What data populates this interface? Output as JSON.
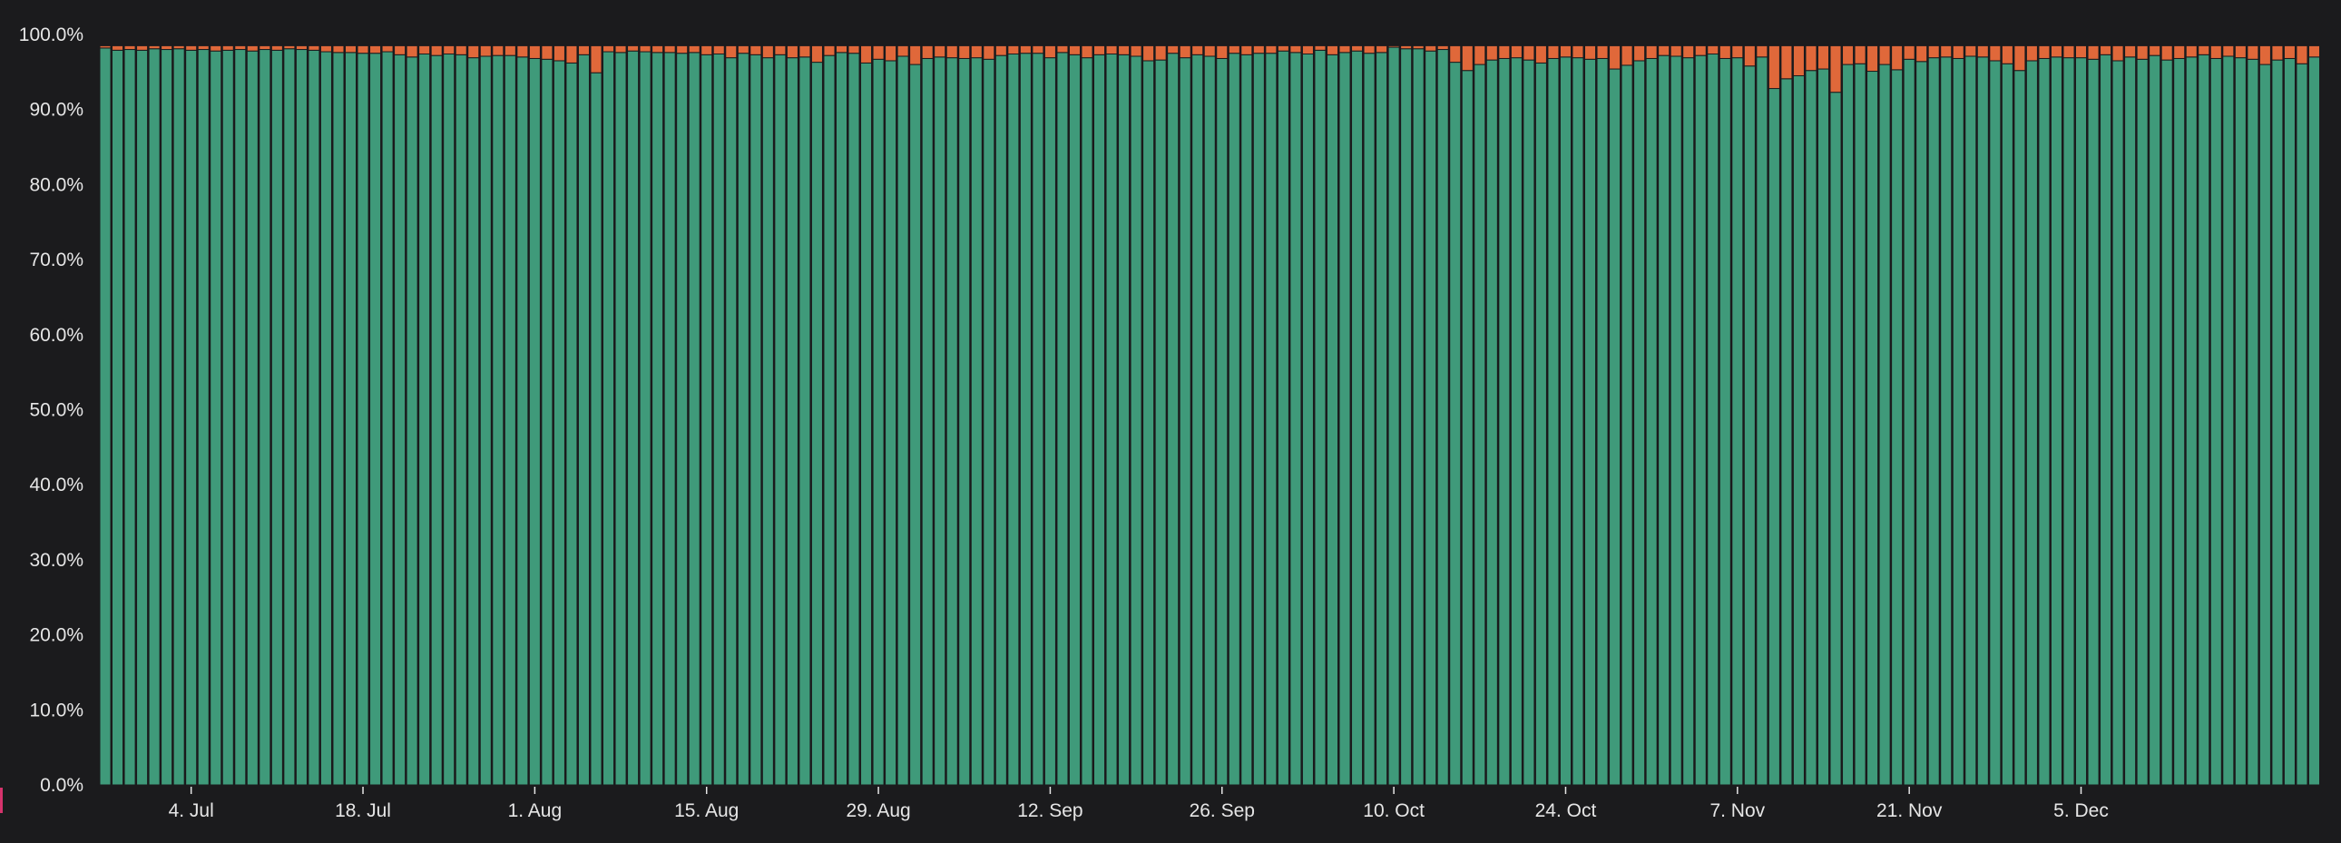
{
  "colors": {
    "background": "#1b1b1d",
    "positive": "#3f9a7a",
    "negative": "#e0683a",
    "bar_border": "#1b1b1d",
    "axis_text": "#e6e6e6",
    "accent_mark": "#d6336c"
  },
  "chart_data": {
    "type": "bar",
    "stacked": true,
    "x_start_date": "2022-06-27",
    "x_ticks": [
      "4. Jul",
      "18. Jul",
      "1. Aug",
      "15. Aug",
      "29. Aug",
      "12. Sep",
      "26. Sep",
      "10. Oct",
      "24. Oct",
      "7. Nov",
      "21. Nov",
      "5. Dec"
    ],
    "y_ticks": [
      "0.0%",
      "10.0%",
      "20.0%",
      "30.0%",
      "40.0%",
      "50.0%",
      "60.0%",
      "70.0%",
      "80.0%",
      "90.0%",
      "100.0%"
    ],
    "ylim": [
      0,
      100
    ],
    "bar_top": 98.5,
    "grid": false,
    "legend": "none",
    "series": [
      {
        "values": [
          98.2,
          97.9,
          98.0,
          97.9,
          98.1,
          98.0,
          98.1,
          97.9,
          98.0,
          97.8,
          97.9,
          98.0,
          97.8,
          98.0,
          97.9,
          98.1,
          98.0,
          97.9,
          97.7,
          97.6,
          97.6,
          97.5,
          97.5,
          97.7,
          97.3,
          97.0,
          97.4,
          97.2,
          97.4,
          97.3,
          96.9,
          97.1,
          97.2,
          97.2,
          97.0,
          96.8,
          96.7,
          96.5,
          96.2,
          97.3,
          94.9,
          97.7,
          97.6,
          97.8,
          97.7,
          97.6,
          97.6,
          97.5,
          97.6,
          97.3,
          97.4,
          96.9,
          97.5,
          97.3,
          96.9,
          97.3,
          96.9,
          97.0,
          96.3,
          97.2,
          97.6,
          97.5,
          96.2,
          96.7,
          96.5,
          97.1,
          96.0,
          96.8,
          97.0,
          96.9,
          96.8,
          96.9,
          96.7,
          97.2,
          97.4,
          97.5,
          97.5,
          96.9,
          97.6,
          97.3,
          96.9,
          97.3,
          97.4,
          97.3,
          97.1,
          96.5,
          96.6,
          97.5,
          96.9,
          97.3,
          97.1,
          96.8,
          97.5,
          97.3,
          97.5,
          97.5,
          97.8,
          97.6,
          97.4,
          97.9,
          97.3,
          97.6,
          97.8,
          97.5,
          97.6,
          98.3,
          98.1,
          98.1,
          97.8,
          98.0,
          96.3,
          95.2,
          96.0,
          96.6,
          96.8,
          96.9,
          96.6,
          96.2,
          96.8,
          97.0,
          96.9,
          96.7,
          96.8,
          95.4,
          95.9,
          96.5,
          96.8,
          97.2,
          97.1,
          96.9,
          97.2,
          97.4,
          96.8,
          96.9,
          95.8,
          97.0,
          92.8,
          94.1,
          94.5,
          95.2,
          95.4,
          92.3,
          96.0,
          96.1,
          95.1,
          96.0,
          95.3,
          96.7,
          96.4,
          96.9,
          97.0,
          96.8,
          97.1,
          97.0,
          96.5,
          96.1,
          95.2,
          96.5,
          96.8,
          97.0,
          96.9,
          96.9,
          96.7,
          97.3,
          96.5,
          97.0,
          96.7,
          97.2,
          96.6,
          96.8,
          97.0,
          97.3,
          96.8,
          97.1,
          96.9,
          96.7,
          96.0,
          96.6,
          96.8,
          96.1,
          97.0
        ]
      },
      {
        "values": [
          0.3,
          0.6,
          0.5,
          0.6,
          0.4,
          0.5,
          0.4,
          0.6,
          0.5,
          0.7,
          0.6,
          0.5,
          0.7,
          0.5,
          0.6,
          0.4,
          0.5,
          0.6,
          0.8,
          0.9,
          0.9,
          1.0,
          1.0,
          0.8,
          1.2,
          1.5,
          1.1,
          1.3,
          1.1,
          1.2,
          1.6,
          1.4,
          1.3,
          1.3,
          1.5,
          1.7,
          1.8,
          2.0,
          2.3,
          1.2,
          3.6,
          0.8,
          0.9,
          0.7,
          0.8,
          0.9,
          0.9,
          1.0,
          0.9,
          1.2,
          1.1,
          1.6,
          1.0,
          1.2,
          1.6,
          1.2,
          1.6,
          1.5,
          2.2,
          1.3,
          0.9,
          1.0,
          2.3,
          1.8,
          2.0,
          1.4,
          2.5,
          1.7,
          1.5,
          1.6,
          1.7,
          1.6,
          1.8,
          1.3,
          1.1,
          1.0,
          1.0,
          1.6,
          0.9,
          1.2,
          1.6,
          1.2,
          1.1,
          1.2,
          1.4,
          2.0,
          1.9,
          1.0,
          1.6,
          1.2,
          1.4,
          1.7,
          1.0,
          1.2,
          1.0,
          1.0,
          0.7,
          0.9,
          1.1,
          0.6,
          1.2,
          0.9,
          0.7,
          1.0,
          0.9,
          0.2,
          0.4,
          0.4,
          0.7,
          0.5,
          2.2,
          3.3,
          2.5,
          1.9,
          1.7,
          1.6,
          1.9,
          2.3,
          1.7,
          1.5,
          1.6,
          1.8,
          1.7,
          3.1,
          2.6,
          2.0,
          1.7,
          1.3,
          1.4,
          1.6,
          1.3,
          1.1,
          1.7,
          1.6,
          2.7,
          1.5,
          5.7,
          4.4,
          4.0,
          3.3,
          3.1,
          6.2,
          2.5,
          2.4,
          3.4,
          2.5,
          3.2,
          1.8,
          2.1,
          1.6,
          1.5,
          1.7,
          1.4,
          1.5,
          2.0,
          2.4,
          3.3,
          2.0,
          1.7,
          1.5,
          1.6,
          1.6,
          1.8,
          1.2,
          2.0,
          1.5,
          1.8,
          1.3,
          1.9,
          1.7,
          1.5,
          1.2,
          1.7,
          1.4,
          1.6,
          1.8,
          2.5,
          1.9,
          1.7,
          2.4,
          1.5
        ]
      }
    ]
  }
}
